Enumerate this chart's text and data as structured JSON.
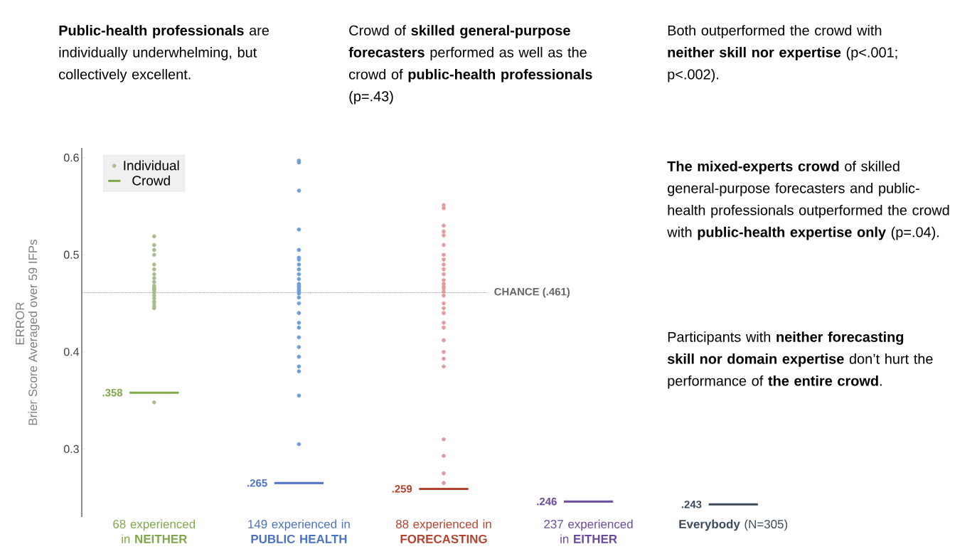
{
  "chart_data": {
    "type": "scatter",
    "categories": [
      "68 experienced in **NEITHER**",
      "149 experienced in **PUBLIC HEALTH**",
      "88 experienced in **FORECASTING**",
      "237 experienced in **EITHER**",
      "**Everybody** (N=305)"
    ],
    "ylabel": "Brier Score Averaged over 59 IFPs",
    "ylim": [
      0.23,
      0.61
    ],
    "yticks": [
      0.3,
      0.4,
      0.5,
      0.6
    ],
    "legend": "top left",
    "series": [
      {
        "name": "Individual",
        "x": [
          "68 experienced in **NEITHER**",
          "68 experienced in **NEITHER**",
          "68 experienced in **NEITHER**",
          "68 experienced in **NEITHER**",
          "68 experienced in **NEITHER**",
          "68 experienced in **NEITHER**",
          "68 experienced in **NEITHER**",
          "68 experienced in **NEITHER**",
          "68 experienced in **NEITHER**",
          "68 experienced in **NEITHER**",
          "68 experienced in **NEITHER**",
          "68 experienced in **NEITHER**",
          "68 experienced in **NEITHER**",
          "68 experienced in **NEITHER**",
          "68 experienced in **NEITHER**",
          "68 experienced in **NEITHER**",
          "68 experienced in **NEITHER**",
          "68 experienced in **NEITHER**",
          "68 experienced in **NEITHER**",
          "68 experienced in **NEITHER**",
          "68 experienced in **NEITHER**",
          "68 experienced in **NEITHER**",
          "149 experienced in **PUBLIC HEALTH**",
          "149 experienced in **PUBLIC HEALTH**",
          "149 experienced in **PUBLIC HEALTH**",
          "149 experienced in **PUBLIC HEALTH**",
          "149 experienced in **PUBLIC HEALTH**",
          "149 experienced in **PUBLIC HEALTH**",
          "149 experienced in **PUBLIC HEALTH**",
          "149 experienced in **PUBLIC HEALTH**",
          "149 experienced in **PUBLIC HEALTH**",
          "149 experienced in **PUBLIC HEALTH**",
          "149 experienced in **PUBLIC HEALTH**",
          "149 experienced in **PUBLIC HEALTH**",
          "149 experienced in **PUBLIC HEALTH**",
          "149 experienced in **PUBLIC HEALTH**",
          "149 experienced in **PUBLIC HEALTH**",
          "149 experienced in **PUBLIC HEALTH**",
          "149 experienced in **PUBLIC HEALTH**",
          "149 experienced in **PUBLIC HEALTH**",
          "149 experienced in **PUBLIC HEALTH**",
          "149 experienced in **PUBLIC HEALTH**",
          "149 experienced in **PUBLIC HEALTH**",
          "149 experienced in **PUBLIC HEALTH**",
          "149 experienced in **PUBLIC HEALTH**",
          "149 experienced in **PUBLIC HEALTH**",
          "149 experienced in **PUBLIC HEALTH**",
          "149 experienced in **PUBLIC HEALTH**",
          "149 experienced in **PUBLIC HEALTH**",
          "149 experienced in **PUBLIC HEALTH**",
          "149 experienced in **PUBLIC HEALTH**",
          "149 experienced in **PUBLIC HEALTH**",
          "88 experienced in **FORECASTING**",
          "88 experienced in **FORECASTING**",
          "88 experienced in **FORECASTING**",
          "88 experienced in **FORECASTING**",
          "88 experienced in **FORECASTING**",
          "88 experienced in **FORECASTING**",
          "88 experienced in **FORECASTING**",
          "88 experienced in **FORECASTING**",
          "88 experienced in **FORECASTING**",
          "88 experienced in **FORECASTING**",
          "88 experienced in **FORECASTING**",
          "88 experienced in **FORECASTING**",
          "88 experienced in **FORECASTING**",
          "88 experienced in **FORECASTING**",
          "88 experienced in **FORECASTING**",
          "88 experienced in **FORECASTING**",
          "88 experienced in **FORECASTING**",
          "88 experienced in **FORECASTING**",
          "88 experienced in **FORECASTING**",
          "88 experienced in **FORECASTING**",
          "88 experienced in **FORECASTING**",
          "88 experienced in **FORECASTING**",
          "88 experienced in **FORECASTING**",
          "88 experienced in **FORECASTING**",
          "88 experienced in **FORECASTING**",
          "88 experienced in **FORECASTING**",
          "88 experienced in **FORECASTING**",
          "88 experienced in **FORECASTING**",
          "88 experienced in **FORECASTING**",
          "88 experienced in **FORECASTING**"
        ],
        "values": [
          0.519,
          0.51,
          0.5,
          0.49,
          0.485,
          0.48,
          0.476,
          0.472,
          0.468,
          0.466,
          0.465,
          0.464,
          0.463,
          0.461,
          0.458,
          0.455,
          0.452,
          0.45,
          0.447,
          0.445,
          0.505,
          0.348,
          0.597,
          0.595,
          0.566,
          0.526,
          0.505,
          0.497,
          0.49,
          0.485,
          0.48,
          0.475,
          0.47,
          0.467,
          0.465,
          0.464,
          0.462,
          0.46,
          0.456,
          0.45,
          0.44,
          0.43,
          0.425,
          0.415,
          0.405,
          0.395,
          0.385,
          0.38,
          0.355,
          0.305,
          0.495,
          0.468,
          0.551,
          0.548,
          0.53,
          0.524,
          0.51,
          0.5,
          0.49,
          0.485,
          0.48,
          0.474,
          0.47,
          0.467,
          0.465,
          0.462,
          0.458,
          0.45,
          0.44,
          0.43,
          0.425,
          0.412,
          0.4,
          0.393,
          0.385,
          0.31,
          0.293,
          0.275,
          0.265,
          0.52,
          0.495,
          0.445
        ],
        "colors": [
          "#a9bb8f",
          "#a9bb8f",
          "#a9bb8f",
          "#a9bb8f",
          "#a9bb8f",
          "#a9bb8f",
          "#a9bb8f",
          "#a9bb8f",
          "#a9bb8f",
          "#a9bb8f",
          "#a9bb8f",
          "#a9bb8f",
          "#a9bb8f",
          "#a9bb8f",
          "#a9bb8f",
          "#a9bb8f",
          "#a9bb8f",
          "#a9bb8f",
          "#a9bb8f",
          "#a9bb8f",
          "#a9bb8f",
          "#a9bb8f",
          "#6f9de0",
          "#6f9de0",
          "#6f9de0",
          "#6f9de0",
          "#6f9de0",
          "#6f9de0",
          "#6f9de0",
          "#6f9de0",
          "#6f9de0",
          "#6f9de0",
          "#6f9de0",
          "#6f9de0",
          "#6f9de0",
          "#6f9de0",
          "#6f9de0",
          "#6f9de0",
          "#6f9de0",
          "#6f9de0",
          "#6f9de0",
          "#6f9de0",
          "#6f9de0",
          "#6f9de0",
          "#6f9de0",
          "#6f9de0",
          "#6f9de0",
          "#6f9de0",
          "#6f9de0",
          "#6f9de0",
          "#6f9de0",
          "#6f9de0",
          "#e39b9b",
          "#e39b9b",
          "#e39b9b",
          "#e39b9b",
          "#e39b9b",
          "#e39b9b",
          "#e39b9b",
          "#e39b9b",
          "#e39b9b",
          "#e39b9b",
          "#e39b9b",
          "#e39b9b",
          "#e39b9b",
          "#e39b9b",
          "#e39b9b",
          "#e39b9b",
          "#e39b9b",
          "#e39b9b",
          "#e39b9b",
          "#e39b9b",
          "#e39b9b",
          "#e39b9b",
          "#e39b9b",
          "#e39b9b",
          "#e39b9b",
          "#e39b9b",
          "#e39b9b",
          "#e39b9b",
          "#e39b9b",
          "#e39b9b"
        ]
      },
      {
        "name": "Crowd",
        "type": "box",
        "colors": [
          "#7fa84a",
          "#4a72c4",
          "#b8412e",
          "#6a4a9c",
          "#3d4a5c"
        ],
        "boxes": [
          {
            "low": 0.358,
            "q1": 0.358,
            "median": 0.358,
            "q3": 0.358,
            "high": 0.358
          },
          {
            "low": 0.265,
            "q1": 0.265,
            "median": 0.265,
            "q3": 0.265,
            "high": 0.265
          },
          {
            "low": 0.259,
            "q1": 0.259,
            "median": 0.259,
            "q3": 0.259,
            "high": 0.259
          },
          {
            "low": 0.246,
            "q1": 0.246,
            "median": 0.246,
            "q3": 0.246,
            "high": 0.246
          },
          {
            "low": 0.243,
            "q1": 0.243,
            "median": 0.243,
            "q3": 0.243,
            "high": 0.243
          }
        ]
      }
    ],
    "ref_lines": [
      {
        "axis": "y",
        "value": 0.461,
        "label": "CHANCE (.461)",
        "color": "#666666",
        "line_style": "dotted"
      }
    ],
    "annotations": [
      "**Public-health professionals** are individually underwhelming, but collectively excellent.",
      "Crowd of **skilled general-purpose forecasters** performed as well as the crowd of **public-health professionals** (p=.43)",
      "Both outperformed the crowd with **neither skill nor expertise** (p<.001; p<.002).",
      "**The mixed-experts crowd** of skilled general-purpose forecasters and public-health professionals outperformed the crowd with **public-health expertise only** (p=.04).",
      "Participants with **neither forecasting skill nor domain expertise** don’t hurt the performance of **the entire crowd**.",
      "ERROR",
      {
        "text": ".358",
        "x": "68 experienced in **NEITHER**",
        "y": 0.358
      },
      {
        "text": ".265",
        "x": "149 experienced in **PUBLIC HEALTH**",
        "y": 0.265
      },
      {
        "text": ".259",
        "x": "88 experienced in **FORECASTING**",
        "y": 0.259
      },
      {
        "text": ".246",
        "x": "237 experienced in **EITHER**",
        "y": 0.246
      },
      {
        "text": ".243",
        "x": "**Everybody** (N=305)",
        "y": 0.243
      }
    ]
  }
}
